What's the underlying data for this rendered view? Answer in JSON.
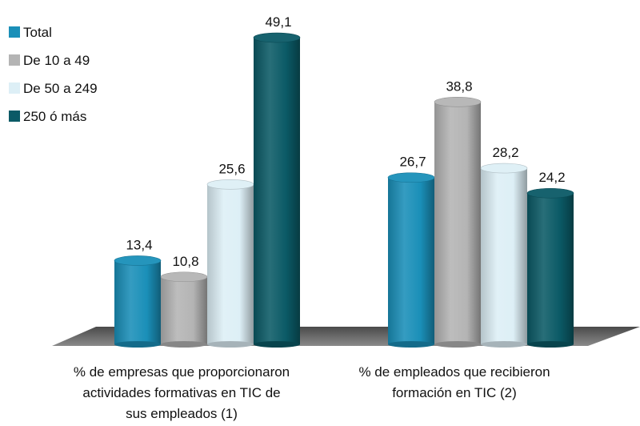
{
  "chart_data": {
    "type": "bar",
    "categories": [
      [
        "% de empresas que proporcionaron",
        "actividades formativas en TIC de",
        "sus empleados (1)"
      ],
      [
        "% de empleados que recibieron",
        "formación en TIC (2)"
      ]
    ],
    "series": [
      {
        "name": "Total",
        "color": "#1a8fb8",
        "values": [
          13.4,
          26.7
        ],
        "labels": [
          "13,4",
          "26,7"
        ]
      },
      {
        "name": "De 10 a 49",
        "color": "#b4b4b4",
        "values": [
          10.8,
          38.8
        ],
        "labels": [
          "10,8",
          "38,8"
        ]
      },
      {
        "name": "De  50 a 249",
        "color": "#ddeff6",
        "values": [
          25.6,
          28.2
        ],
        "labels": [
          "25,6",
          "28,2"
        ]
      },
      {
        "name": "250 ó más",
        "color": "#0b5a66",
        "values": [
          49.1,
          24.2
        ],
        "labels": [
          "49,1",
          "24,2"
        ]
      }
    ],
    "ylim": [
      0,
      50
    ],
    "legend_position": "top-left",
    "grid": false
  }
}
